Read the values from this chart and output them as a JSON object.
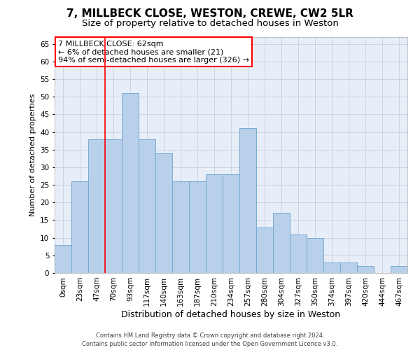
{
  "title1": "7, MILLBECK CLOSE, WESTON, CREWE, CW2 5LR",
  "title2": "Size of property relative to detached houses in Weston",
  "xlabel": "Distribution of detached houses by size in Weston",
  "ylabel": "Number of detached properties",
  "footer1": "Contains HM Land Registry data © Crown copyright and database right 2024.",
  "footer2": "Contains public sector information licensed under the Open Government Licence v3.0.",
  "categories": [
    "0sqm",
    "23sqm",
    "47sqm",
    "70sqm",
    "93sqm",
    "117sqm",
    "140sqm",
    "163sqm",
    "187sqm",
    "210sqm",
    "234sqm",
    "257sqm",
    "280sqm",
    "304sqm",
    "327sqm",
    "350sqm",
    "374sqm",
    "397sqm",
    "420sqm",
    "444sqm",
    "467sqm"
  ],
  "values": [
    8,
    26,
    38,
    38,
    51,
    38,
    34,
    26,
    26,
    28,
    28,
    41,
    13,
    17,
    11,
    10,
    3,
    3,
    2,
    0,
    2
  ],
  "bar_color": "#b8d0ea",
  "bar_edge_color": "#7aaad0",
  "grid_color": "#c8d4e8",
  "bg_color": "#e8eef8",
  "vline_x": 2.5,
  "vline_color": "red",
  "annotation_text": "7 MILLBECK CLOSE: 62sqm\n← 6% of detached houses are smaller (21)\n94% of semi-detached houses are larger (326) →",
  "ylim": [
    0,
    67
  ],
  "yticks": [
    0,
    5,
    10,
    15,
    20,
    25,
    30,
    35,
    40,
    45,
    50,
    55,
    60,
    65
  ],
  "title1_fontsize": 11,
  "title2_fontsize": 9.5,
  "xlabel_fontsize": 9,
  "ylabel_fontsize": 8,
  "tick_fontsize": 7.5,
  "footer_fontsize": 6,
  "ann_fontsize": 8
}
